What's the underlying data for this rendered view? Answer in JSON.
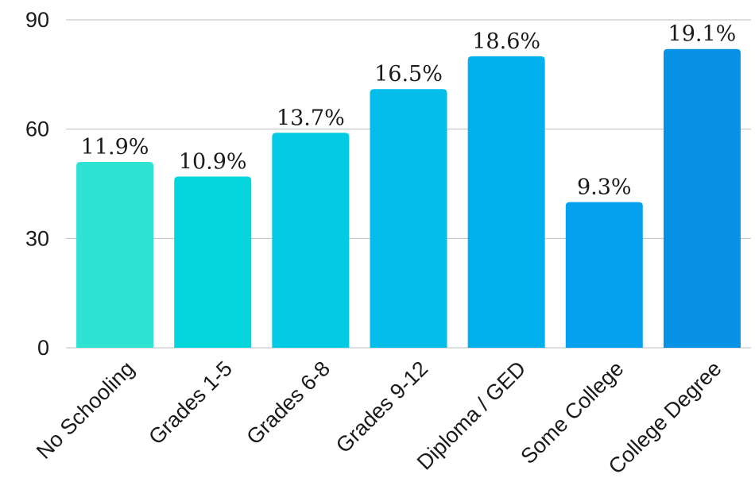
{
  "chart_data": {
    "type": "bar",
    "categories": [
      "No Schooling",
      "Grades 1-5",
      "Grades 6-8",
      "Grades 9-12",
      "Diploma / GED",
      "Some College",
      "College Degree"
    ],
    "values": [
      51,
      47,
      59,
      71,
      80,
      40,
      82
    ],
    "data_labels": [
      "11.9%",
      "10.9%",
      "13.7%",
      "16.5%",
      "18.6%",
      "9.3%",
      "19.1%"
    ],
    "bar_colors": [
      "#2fe3d3",
      "#06d6dc",
      "#02cbe3",
      "#04bdea",
      "#02b0ee",
      "#05a0ee",
      "#0792e6"
    ],
    "yticks": [
      "0",
      "30",
      "60",
      "90"
    ],
    "ylim": [
      0,
      90
    ],
    "grid": true,
    "legend": false,
    "title": "",
    "xlabel": "",
    "ylabel": ""
  }
}
